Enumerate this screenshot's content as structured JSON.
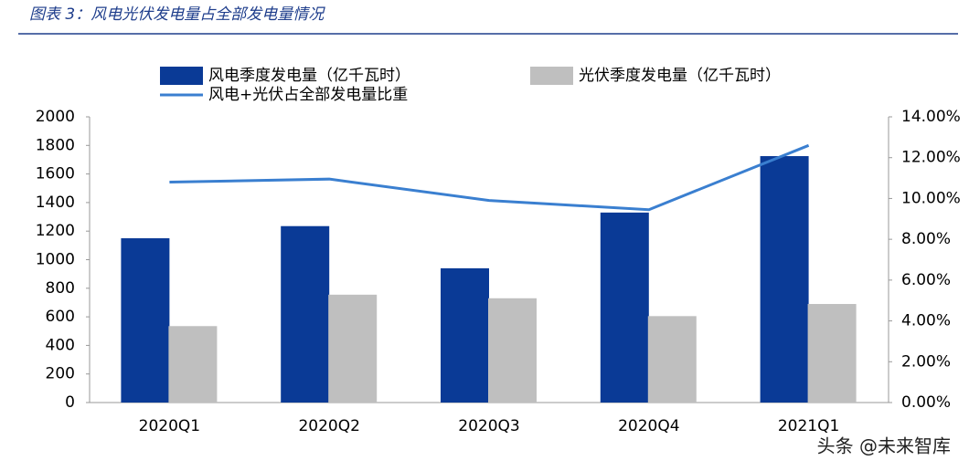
{
  "chart_data": {
    "type": "bar-line",
    "title": "图表 3：风电光伏发电量占全部发电量情况",
    "categories": [
      "2020Q1",
      "2020Q2",
      "2020Q3",
      "2020Q4",
      "2021Q1"
    ],
    "series": [
      {
        "name": "风电季度发电量（亿千瓦时）",
        "color": "#0a3a96",
        "type": "bar",
        "values": [
          1150,
          1235,
          940,
          1330,
          1725
        ]
      },
      {
        "name": "光伏季度发电量（亿千瓦时）",
        "color": "#bfbfbf",
        "type": "bar",
        "values": [
          535,
          755,
          730,
          605,
          690
        ]
      },
      {
        "name": "风电+光伏占全部发电量比重",
        "color": "#3a7fd0",
        "type": "line",
        "axis": "y2",
        "values": [
          10.8,
          10.95,
          9.9,
          9.45,
          12.6
        ]
      }
    ],
    "ylim": [
      0,
      2000
    ],
    "yticks": [
      0,
      200,
      400,
      600,
      800,
      1000,
      1200,
      1400,
      1600,
      1800,
      2000
    ],
    "y2lim": [
      0,
      14
    ],
    "y2ticks": [
      {
        "value": 0,
        "label": "0.00%"
      },
      {
        "value": 2,
        "label": "2.00%"
      },
      {
        "value": 4,
        "label": "4.00%"
      },
      {
        "value": 6,
        "label": "6.00%"
      },
      {
        "value": 8,
        "label": "8.00%"
      },
      {
        "value": 10,
        "label": "10.00%"
      },
      {
        "value": 12,
        "label": "12.00%"
      },
      {
        "value": 14,
        "label": "14.00%"
      }
    ],
    "watermark": "头条 @未来智库"
  }
}
